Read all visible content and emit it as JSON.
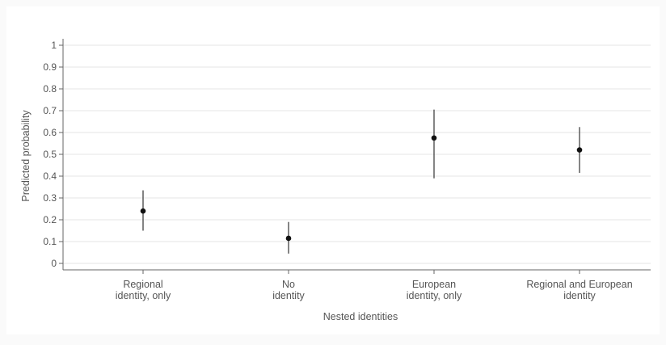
{
  "chart_data": {
    "type": "scatter",
    "title": "",
    "xlabel": "Nested identities",
    "ylabel": "Predicted probability",
    "ylim": [
      0,
      1
    ],
    "yticks": [
      0,
      0.1,
      0.2,
      0.3,
      0.4,
      0.5,
      0.6,
      0.7,
      0.8,
      0.9,
      1
    ],
    "ytick_labels": [
      "0",
      "0.1",
      "0.2",
      "0.3",
      "0.4",
      "0.5",
      "0.6",
      "0.7",
      "0.8",
      "0.9",
      "1"
    ],
    "grid": true,
    "categories": [
      [
        "Regional",
        "identity, only"
      ],
      [
        "No",
        "identity"
      ],
      [
        "European",
        "identity, only"
      ],
      [
        "Regional and European",
        "identity"
      ]
    ],
    "values": [
      0.24,
      0.115,
      0.575,
      0.52
    ],
    "ci_lower": [
      0.15,
      0.045,
      0.39,
      0.415
    ],
    "ci_upper": [
      0.335,
      0.19,
      0.705,
      0.625
    ],
    "colors": {
      "point": "#111111",
      "ci_line": "#333333",
      "grid": "#e6e6e6",
      "axis": "#666666",
      "plot_bg": "#ffffff",
      "page_bg": "#fafafa"
    }
  }
}
